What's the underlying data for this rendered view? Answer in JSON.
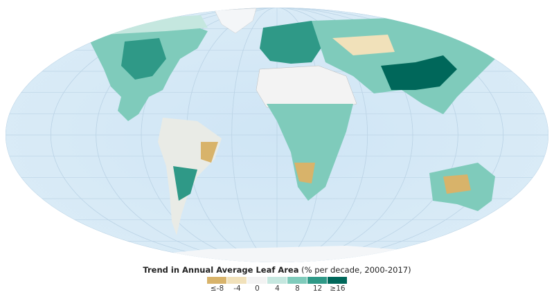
{
  "legend": {
    "title_bold": "Trend in Annual Average Leaf Area",
    "title_units": "(% per decade, 2000-2017)",
    "classes": [
      {
        "label": "≤-8",
        "color": "#d8b36a"
      },
      {
        "label": "-4",
        "color": "#f1e1ba"
      },
      {
        "label": "0",
        "color": "#f3f3f3"
      },
      {
        "label": "4",
        "color": "#c5e7df"
      },
      {
        "label": "8",
        "color": "#7fcbbb"
      },
      {
        "label": "12",
        "color": "#2f9987"
      },
      {
        "label": "≥16",
        "color": "#00675a"
      }
    ]
  },
  "colors": {
    "ocean": "#d6e9f6",
    "graticule": "#b9d3e6",
    "ice": "#f4f6f8",
    "land_neutral": "#e9ebe6"
  }
}
